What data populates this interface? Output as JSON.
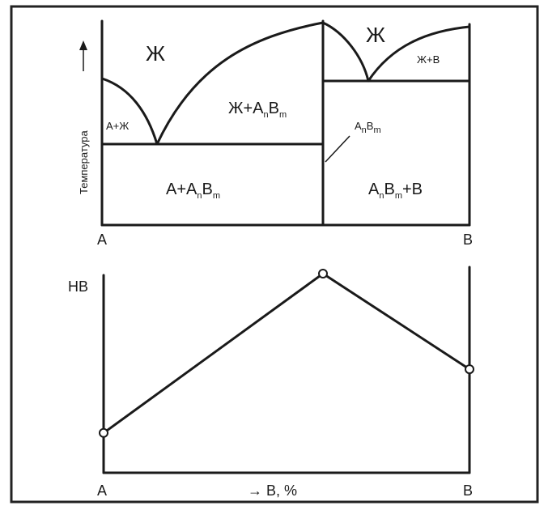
{
  "phase_diagram": {
    "y_axis_label": "Температура",
    "x_left": "A",
    "x_right": "B",
    "regions": {
      "liquid_left": "Ж",
      "liquid_right": "Ж",
      "a_plus_liquid": "А+Ж",
      "liquid_plus_compound_main": "Ж+A",
      "liquid_plus_compound_s1": "n",
      "liquid_plus_compound_mid": "B",
      "liquid_plus_compound_s2": "m",
      "liquid_plus_b": "Ж+В",
      "a_plus_compound_main": "A+A",
      "a_plus_compound_s1": "n",
      "a_plus_compound_mid": "B",
      "a_plus_compound_s2": "m",
      "compound_plus_b_a": "A",
      "compound_plus_b_s1": "n",
      "compound_plus_b_mid": "B",
      "compound_plus_b_s2": "m",
      "compound_plus_b_tail": "+B",
      "compound_label_a": "A",
      "compound_label_s1": "n",
      "compound_label_b": "B",
      "compound_label_s2": "m"
    }
  },
  "chart_data": {
    "type": "line",
    "ylabel": "HB",
    "xlabel": "→ B, %",
    "x_tick_labels": [
      "A",
      "B"
    ],
    "series": [
      {
        "x": [
          "A",
          "AnBm",
          "B"
        ],
        "values": [
          1,
          5,
          2.6
        ]
      }
    ]
  }
}
